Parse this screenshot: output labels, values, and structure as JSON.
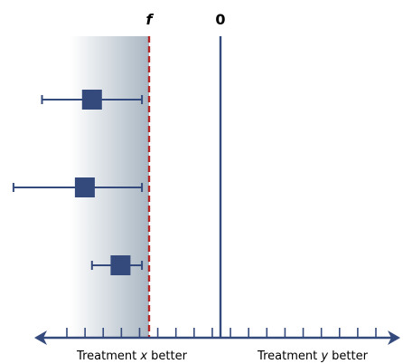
{
  "chart_data": {
    "type": "scatter",
    "subtype": "forest-plot",
    "title": "",
    "xlabel": "",
    "ylabel": "",
    "reference_lines": [
      {
        "label": "f",
        "x": -1,
        "style": "dashed",
        "color": "#b32424"
      },
      {
        "label": "0",
        "x": 0,
        "style": "solid",
        "color": "#344a7c"
      }
    ],
    "xlim": [
      -2.3,
      2.3
    ],
    "axis_arrows": "both-ends",
    "x_ticks": 18,
    "shaded_region": {
      "from": -2.1,
      "to": -1,
      "gradient": "light-to-grey"
    },
    "points": [
      {
        "row": 1,
        "estimate": -1.8,
        "ci_low": -2.5,
        "ci_high": -1.1
      },
      {
        "row": 2,
        "estimate": -1.9,
        "ci_low": -2.9,
        "ci_high": -1.1
      },
      {
        "row": 3,
        "estimate": -1.4,
        "ci_low": -1.8,
        "ci_high": -1.1
      }
    ],
    "region_labels": {
      "left": {
        "prefix": "Treatment ",
        "var": "x",
        "suffix": " better"
      },
      "right": {
        "prefix": "Treatment ",
        "var": "y",
        "suffix": " better"
      }
    },
    "colors": {
      "primary": "#344a7c",
      "margin_line": "#b32424",
      "shade": "#a9b6c2"
    },
    "grid": false,
    "legend": "none"
  }
}
